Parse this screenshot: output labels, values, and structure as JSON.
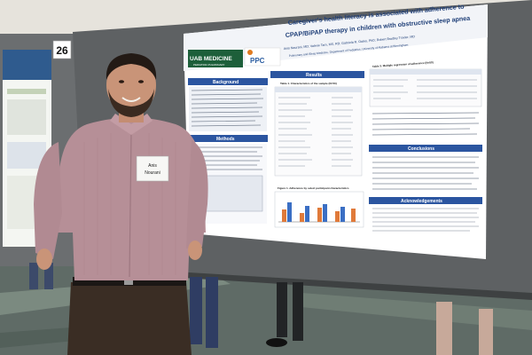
{
  "board_number": "26",
  "poster": {
    "title": "Caregiver's health literacy is associated with adherence to CPAP/BiPAP therapy in children with obstructive sleep apnea",
    "title_line1": "Caregiver's health literacy is associated with adherence to",
    "title_line2": "CPAP/BiPAP therapy in children with obstructive sleep apnea",
    "authors": "Anis Nourani, MD; Valerie Tarn, MS, RD; Gabriela R. Oates, PhD; Robert Bradley Troxler, MD",
    "affiliation": "Pulmonary and Sleep Medicine, Department of Pediatrics, University of Alabama at Birmingham",
    "logo_uab": "UAB MEDICINE",
    "logo_uab_sub": "PEDIATRIC PULMONARY",
    "logo_ppc": "PPC",
    "sections": {
      "background": "Background",
      "methods": "Methods",
      "results": "Results",
      "conclusions": "Conclusions",
      "acknowledgements": "Acknowledgements"
    },
    "table1_title": "Table 1. Characteristics of the sample (N=50)",
    "table3_title": "Table 3. Multiple regression of adherence (N=50)",
    "figure1_title": "Figure 1. Adherence by select participant characteristics"
  },
  "badge": {
    "line1": "Anis",
    "line2": "Nourani"
  }
}
